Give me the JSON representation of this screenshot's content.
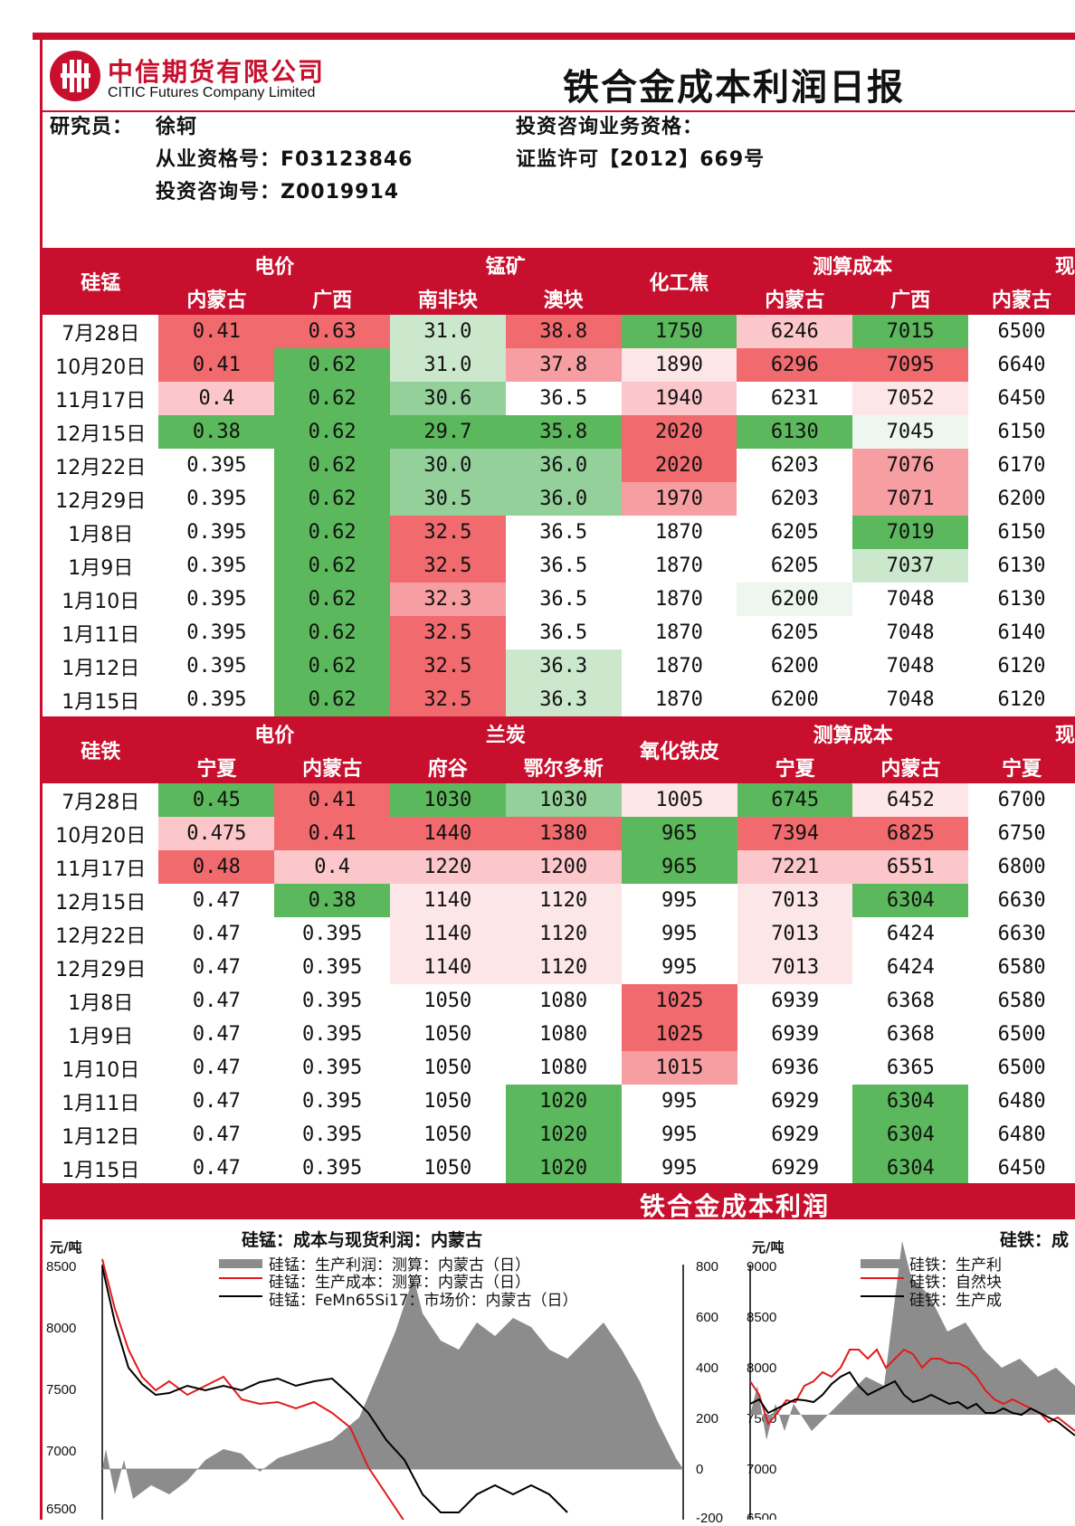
{
  "header": {
    "company_cn": "中信期货有限公司",
    "company_en": "CITIC Futures Company Limited",
    "title": "铁合金成本利润日报"
  },
  "info": {
    "researcher_label": "研究员：",
    "researcher_name": "徐轲",
    "cert_no": "从业资格号：F03123846",
    "consult_no": "投资咨询号：Z0019914",
    "biz_label": "投资咨询业务资格：",
    "biz_license": "证监许可【2012】669号"
  },
  "sm": {
    "name": "硅锰",
    "g_elec": "电价",
    "g_ore": "锰矿",
    "coke": "化工焦",
    "g_cost": "测算成本",
    "g_next": "现",
    "h": [
      "内蒙古",
      "广西",
      "南非块",
      "澳块",
      "内蒙古",
      "广西",
      "内蒙古"
    ],
    "rows": [
      {
        "date": "7月28日",
        "v": [
          "0.41",
          "0.63",
          "31.0",
          "38.8",
          "1750",
          "6246",
          "7015",
          "6500"
        ]
      },
      {
        "date": "10月20日",
        "v": [
          "0.41",
          "0.62",
          "31.0",
          "37.8",
          "1890",
          "6296",
          "7095",
          "6640"
        ]
      },
      {
        "date": "11月17日",
        "v": [
          "0.4",
          "0.62",
          "30.6",
          "36.5",
          "1940",
          "6231",
          "7052",
          "6450"
        ]
      },
      {
        "date": "12月15日",
        "v": [
          "0.38",
          "0.62",
          "29.7",
          "35.8",
          "2020",
          "6130",
          "7045",
          "6150"
        ]
      },
      {
        "date": "12月22日",
        "v": [
          "0.395",
          "0.62",
          "30.0",
          "36.0",
          "2020",
          "6203",
          "7076",
          "6170"
        ]
      },
      {
        "date": "12月29日",
        "v": [
          "0.395",
          "0.62",
          "30.5",
          "36.0",
          "1970",
          "6203",
          "7071",
          "6200"
        ]
      },
      {
        "date": "1月8日",
        "v": [
          "0.395",
          "0.62",
          "32.5",
          "36.5",
          "1870",
          "6205",
          "7019",
          "6150"
        ]
      },
      {
        "date": "1月9日",
        "v": [
          "0.395",
          "0.62",
          "32.5",
          "36.5",
          "1870",
          "6205",
          "7037",
          "6130"
        ]
      },
      {
        "date": "1月10日",
        "v": [
          "0.395",
          "0.62",
          "32.3",
          "36.5",
          "1870",
          "6200",
          "7048",
          "6130"
        ]
      },
      {
        "date": "1月11日",
        "v": [
          "0.395",
          "0.62",
          "32.5",
          "36.5",
          "1870",
          "6205",
          "7048",
          "6140"
        ]
      },
      {
        "date": "1月12日",
        "v": [
          "0.395",
          "0.62",
          "32.5",
          "36.3",
          "1870",
          "6200",
          "7048",
          "6120"
        ]
      },
      {
        "date": "1月15日",
        "v": [
          "0.395",
          "0.62",
          "32.5",
          "36.3",
          "1870",
          "6200",
          "7048",
          "6120"
        ]
      }
    ]
  },
  "si": {
    "name": "硅铁",
    "g_elec": "电价",
    "g_coal": "兰炭",
    "scale": "氧化铁皮",
    "g_cost": "测算成本",
    "g_next": "现",
    "h": [
      "宁夏",
      "内蒙古",
      "府谷",
      "鄂尔多斯",
      "宁夏",
      "内蒙古",
      "宁夏"
    ],
    "rows": [
      {
        "date": "7月28日",
        "v": [
          "0.45",
          "0.41",
          "1030",
          "1030",
          "1005",
          "6745",
          "6452",
          "6700"
        ]
      },
      {
        "date": "10月20日",
        "v": [
          "0.475",
          "0.41",
          "1440",
          "1380",
          "965",
          "7394",
          "6825",
          "6750"
        ]
      },
      {
        "date": "11月17日",
        "v": [
          "0.48",
          "0.4",
          "1220",
          "1200",
          "965",
          "7221",
          "6551",
          "6800"
        ]
      },
      {
        "date": "12月15日",
        "v": [
          "0.47",
          "0.38",
          "1140",
          "1120",
          "995",
          "7013",
          "6304",
          "6630"
        ]
      },
      {
        "date": "12月22日",
        "v": [
          "0.47",
          "0.395",
          "1140",
          "1120",
          "995",
          "7013",
          "6424",
          "6630"
        ]
      },
      {
        "date": "12月29日",
        "v": [
          "0.47",
          "0.395",
          "1140",
          "1120",
          "995",
          "7013",
          "6424",
          "6580"
        ]
      },
      {
        "date": "1月8日",
        "v": [
          "0.47",
          "0.395",
          "1050",
          "1080",
          "1025",
          "6939",
          "6368",
          "6580"
        ]
      },
      {
        "date": "1月9日",
        "v": [
          "0.47",
          "0.395",
          "1050",
          "1080",
          "1025",
          "6939",
          "6368",
          "6500"
        ]
      },
      {
        "date": "1月10日",
        "v": [
          "0.47",
          "0.395",
          "1050",
          "1080",
          "1015",
          "6936",
          "6365",
          "6500"
        ]
      },
      {
        "date": "1月11日",
        "v": [
          "0.47",
          "0.395",
          "1050",
          "1020",
          "995",
          "6929",
          "6304",
          "6480"
        ]
      },
      {
        "date": "1月12日",
        "v": [
          "0.47",
          "0.395",
          "1050",
          "1020",
          "995",
          "6929",
          "6304",
          "6480"
        ]
      },
      {
        "date": "1月15日",
        "v": [
          "0.47",
          "0.395",
          "1050",
          "1020",
          "995",
          "6929",
          "6304",
          "6450"
        ]
      }
    ]
  },
  "cell_colors": {
    "sm": [
      [
        "r3",
        "r3",
        "g1",
        "r3",
        "g3",
        "r1",
        "g3",
        ""
      ],
      [
        "r3",
        "g3",
        "g1",
        "r2",
        "r0",
        "r3",
        "r3",
        ""
      ],
      [
        "r1",
        "g3",
        "g2",
        "",
        "r1",
        "",
        "r0",
        ""
      ],
      [
        "g3",
        "g3",
        "g3",
        "g3",
        "r3",
        "g3",
        "g0",
        ""
      ],
      [
        "",
        "g3",
        "g2",
        "g2",
        "r3",
        "",
        "r2",
        ""
      ],
      [
        "",
        "g3",
        "g2",
        "g2",
        "r2",
        "",
        "r2",
        ""
      ],
      [
        "",
        "g3",
        "r3",
        "",
        "",
        "",
        "g3",
        ""
      ],
      [
        "",
        "g3",
        "r3",
        "",
        "",
        "",
        "g1",
        ""
      ],
      [
        "",
        "g3",
        "r2",
        "",
        "",
        "g0",
        "",
        ""
      ],
      [
        "",
        "g3",
        "r3",
        "",
        "",
        "",
        "",
        ""
      ],
      [
        "",
        "g3",
        "r3",
        "g1",
        "",
        "",
        "",
        ""
      ],
      [
        "",
        "g3",
        "r3",
        "g1",
        "",
        "",
        "",
        ""
      ]
    ],
    "si": [
      [
        "g3",
        "r3",
        "g3",
        "g2",
        "r0",
        "g3",
        "r0",
        ""
      ],
      [
        "r1",
        "r3",
        "r3",
        "r3",
        "g3",
        "r3",
        "r3",
        ""
      ],
      [
        "r3",
        "r1",
        "r1",
        "r1",
        "g3",
        "r1",
        "r1",
        ""
      ],
      [
        "",
        "g3",
        "r0",
        "r0",
        "",
        "r0",
        "g3",
        ""
      ],
      [
        "",
        "",
        "r0",
        "r0",
        "",
        "r0",
        "",
        ""
      ],
      [
        "",
        "",
        "r0",
        "r0",
        "",
        "r0",
        "",
        ""
      ],
      [
        "",
        "",
        "",
        "",
        "r3",
        "",
        "",
        ""
      ],
      [
        "",
        "",
        "",
        "",
        "r3",
        "",
        "",
        ""
      ],
      [
        "",
        "",
        "",
        "",
        "r2",
        "",
        "",
        ""
      ],
      [
        "",
        "",
        "",
        "g3",
        "",
        "",
        "g3",
        ""
      ],
      [
        "",
        "",
        "",
        "g3",
        "",
        "",
        "g3",
        ""
      ],
      [
        "",
        "",
        "",
        "g3",
        "",
        "",
        "g3",
        ""
      ]
    ]
  },
  "banner": "铁合金成本利润",
  "chart_data": [
    {
      "type": "line",
      "title": "硅锰：成本与现货利润：内蒙古",
      "ylabel_left": "元/吨",
      "yticks_left": [
        "8500",
        "8000",
        "7500",
        "7000",
        "6500"
      ],
      "yticks_right": [
        "800",
        "600",
        "400",
        "200",
        "0",
        "-200"
      ],
      "series": [
        {
          "name": "硅锰：生产利润：测算：内蒙古（日）"
        },
        {
          "name": "硅锰：生产成本：测算：内蒙古（日）"
        },
        {
          "name": "硅锰：FeMn65Si17：市场价：内蒙古（日）"
        }
      ]
    },
    {
      "type": "line",
      "title": "硅铁：成",
      "ylabel_left": "元/吨",
      "yticks_left": [
        "9000",
        "8500",
        "8000",
        "7500",
        "7000",
        "6500"
      ],
      "series": [
        {
          "name": "硅铁：生产利"
        },
        {
          "name": "硅铁：自然块"
        },
        {
          "name": "硅铁：生产成"
        }
      ]
    }
  ],
  "colors": {
    "brand_red": "#c8102e"
  }
}
